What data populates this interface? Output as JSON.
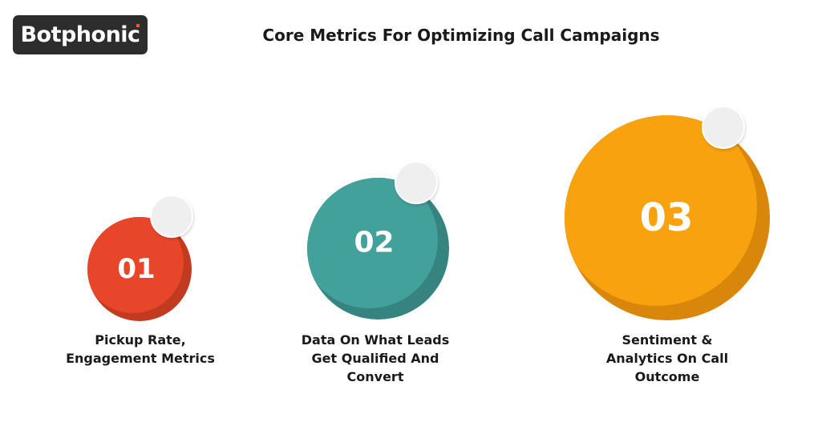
{
  "logo": {
    "text": "Botphonic"
  },
  "title": "Core Metrics For Optimizing Call Campaigns",
  "items": [
    {
      "number": "01",
      "label_lines": [
        "Pickup Rate,",
        "Engagement Metrics"
      ],
      "color": "#e8462a",
      "shade": "#c23a1f"
    },
    {
      "number": "02",
      "label_lines": [
        "Data On What Leads",
        "Get Qualified And",
        "Convert"
      ],
      "color": "#43a19c",
      "shade": "#36847f"
    },
    {
      "number": "03",
      "label_lines": [
        "Sentiment &",
        "Analytics On Call",
        "Outcome"
      ],
      "color": "#f9a20f",
      "shade": "#d9870a"
    }
  ]
}
